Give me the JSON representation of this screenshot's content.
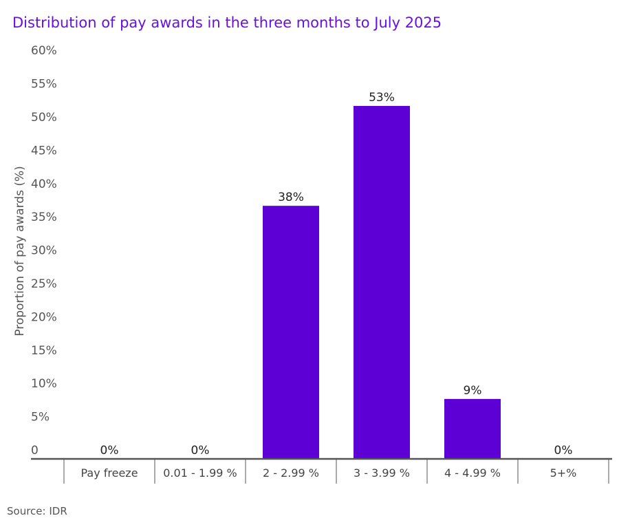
{
  "chart_data": {
    "type": "bar",
    "title": "Distribution of pay awards in the three months to July 2025",
    "xlabel": "",
    "ylabel": "Proportion of pay awards (%)",
    "categories": [
      "Pay freeze",
      "0.01 - 1.99 %",
      "2 - 2.99 %",
      "3 - 3.99 %",
      "4 - 4.99 %",
      "5+%"
    ],
    "values": [
      0,
      0,
      38,
      53,
      9,
      0
    ],
    "data_labels": [
      "0%",
      "0%",
      "38%",
      "53%",
      "9%",
      "0%"
    ],
    "ylim": [
      0,
      60
    ],
    "yticks": [
      0,
      5,
      10,
      15,
      20,
      25,
      30,
      35,
      40,
      45,
      50,
      55,
      60
    ],
    "ytick_labels": [
      "0",
      "5%",
      "10%",
      "15%",
      "20%",
      "25%",
      "30%",
      "35%",
      "40%",
      "45%",
      "50%",
      "55%",
      "60%"
    ],
    "grid": false,
    "legend": "none",
    "colors": {
      "bar": "#5c00d6",
      "title": "#6a0fe0",
      "axis": "#555555",
      "text": "#222222"
    }
  },
  "source": "Source: IDR"
}
